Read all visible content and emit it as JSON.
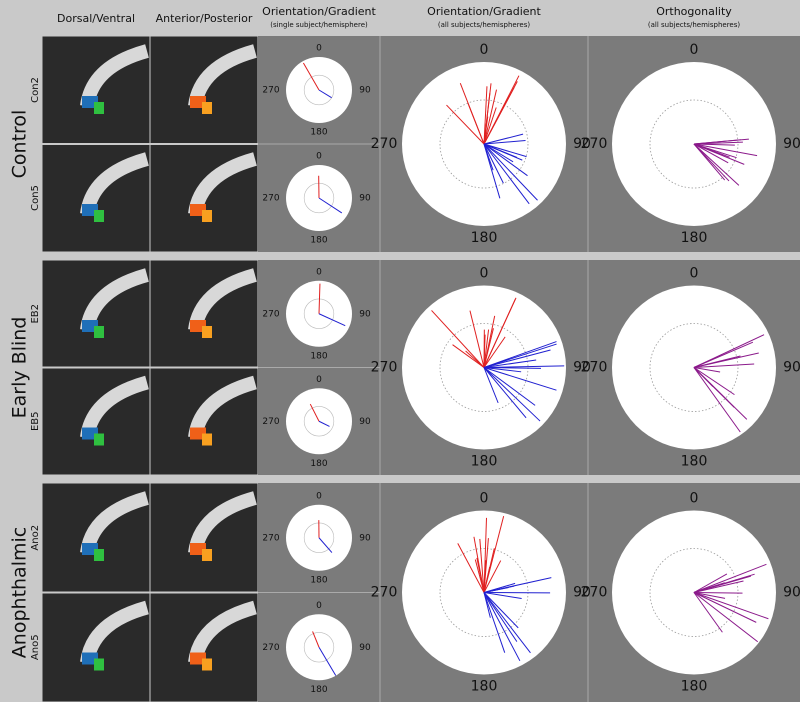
{
  "headers": [
    {
      "title": "Dorsal/Ventral"
    },
    {
      "title": "Anterior/Posterior"
    },
    {
      "title": "Orientation/Gradient",
      "subtitle": "(single subject/hemisphere)"
    },
    {
      "title": "Orientation/Gradient",
      "subtitle": "(all subjects/hemispheres)"
    },
    {
      "title": "Orthogonality",
      "subtitle": "(all subjects/hemispheres)"
    }
  ],
  "groups": [
    {
      "label": "Control",
      "subjects": [
        "Con2",
        "Con5"
      ]
    },
    {
      "label": "Early Blind",
      "subjects": [
        "EB2",
        "EB5"
      ]
    },
    {
      "label": "Anophthalmic",
      "subjects": [
        "Ano2",
        "Ano5"
      ]
    }
  ],
  "polar_labels": [
    "0",
    "90",
    "180",
    "270"
  ]
}
